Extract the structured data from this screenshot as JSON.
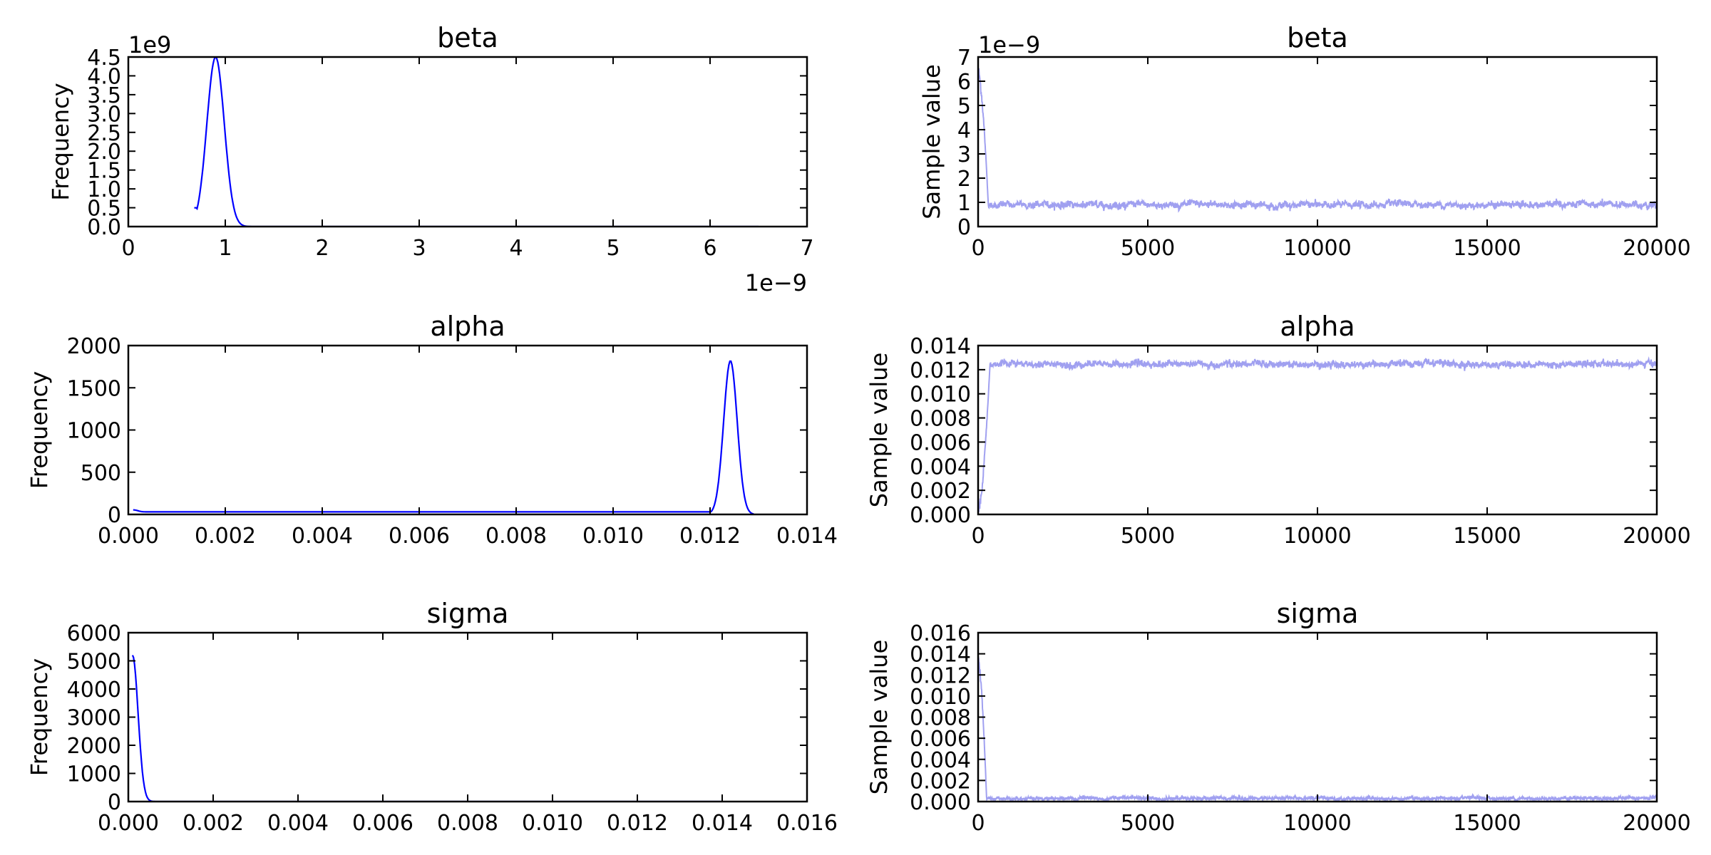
{
  "chart_data": [
    {
      "type": "line",
      "title": "beta",
      "ylabel": "Frequency",
      "xlim": [
        0,
        7
      ],
      "ylim": [
        0,
        4.5
      ],
      "x_offset": "1e−9",
      "y_offset": "1e9",
      "xticks": [
        0,
        1,
        2,
        3,
        4,
        5,
        6,
        7
      ],
      "xtick_labels": [
        "0",
        "1",
        "2",
        "3",
        "4",
        "5",
        "6",
        "7"
      ],
      "yticks": [
        0,
        0.5,
        1,
        1.5,
        2,
        2.5,
        3,
        3.5,
        4,
        4.5
      ],
      "ytick_labels": [
        "0.0",
        "0.5",
        "1.0",
        "1.5",
        "2.0",
        "2.5",
        "3.0",
        "3.5",
        "4.0",
        "4.5"
      ],
      "color": "#0000ff",
      "curve": {
        "kind": "peak",
        "mu": 0.9,
        "sd": 0.09,
        "amp": 4.5,
        "xstart": 0.68,
        "xend": 6.5,
        "start_y": 0.5
      }
    },
    {
      "type": "line",
      "title": "beta",
      "ylabel": "Sample value",
      "xlim": [
        0,
        20000
      ],
      "ylim": [
        0,
        7
      ],
      "y_offset": "1e−9",
      "xticks": [
        0,
        5000,
        10000,
        15000,
        20000
      ],
      "xtick_labels": [
        "0",
        "5000",
        "10000",
        "15000",
        "20000"
      ],
      "yticks": [
        0,
        1,
        2,
        3,
        4,
        5,
        6,
        7
      ],
      "ytick_labels": [
        "0",
        "1",
        "2",
        "3",
        "4",
        "5",
        "6",
        "7"
      ],
      "color": "#a0a0f0",
      "trace": {
        "start": 6.4,
        "burn_end": 300,
        "level": 0.9,
        "noise": 0.06,
        "n": 20000
      }
    },
    {
      "type": "line",
      "title": "alpha",
      "ylabel": "Frequency",
      "xlim": [
        0,
        0.014
      ],
      "ylim": [
        0,
        2000
      ],
      "xticks": [
        0,
        0.002,
        0.004,
        0.006,
        0.008,
        0.01,
        0.012,
        0.014
      ],
      "xtick_labels": [
        "0.000",
        "0.002",
        "0.004",
        "0.006",
        "0.008",
        "0.010",
        "0.012",
        "0.014"
      ],
      "yticks": [
        0,
        500,
        1000,
        1500,
        2000
      ],
      "ytick_labels": [
        "0",
        "500",
        "1000",
        "1500",
        "2000"
      ],
      "color": "#0000ff",
      "curve": {
        "kind": "peak",
        "mu": 0.01242,
        "sd": 0.00014,
        "amp": 1820,
        "xstart": 0.0001,
        "xend": 0.0129,
        "start_y": 30
      }
    },
    {
      "type": "line",
      "title": "alpha",
      "ylabel": "Sample value",
      "xlim": [
        0,
        20000
      ],
      "ylim": [
        0,
        0.014
      ],
      "xticks": [
        0,
        5000,
        10000,
        15000,
        20000
      ],
      "xtick_labels": [
        "0",
        "5000",
        "10000",
        "15000",
        "20000"
      ],
      "yticks": [
        0,
        0.002,
        0.004,
        0.006,
        0.008,
        0.01,
        0.012,
        0.014
      ],
      "ytick_labels": [
        "0.000",
        "0.002",
        "0.004",
        "0.006",
        "0.008",
        "0.010",
        "0.012",
        "0.014"
      ],
      "color": "#a0a0f0",
      "trace": {
        "start": 0.0003,
        "burn_end": 350,
        "level": 0.01245,
        "noise": 0.00012,
        "n": 20000
      }
    },
    {
      "type": "line",
      "title": "sigma",
      "ylabel": "Frequency",
      "xlim": [
        0,
        0.016
      ],
      "ylim": [
        0,
        6000
      ],
      "xticks": [
        0,
        0.002,
        0.004,
        0.006,
        0.008,
        0.01,
        0.012,
        0.014,
        0.016
      ],
      "xtick_labels": [
        "0.000",
        "0.002",
        "0.004",
        "0.006",
        "0.008",
        "0.010",
        "0.012",
        "0.014",
        "0.016"
      ],
      "yticks": [
        0,
        1000,
        2000,
        3000,
        4000,
        5000,
        6000
      ],
      "ytick_labels": [
        "0",
        "1000",
        "2000",
        "3000",
        "4000",
        "5000",
        "6000"
      ],
      "color": "#0000ff",
      "curve": {
        "kind": "decay",
        "mu": 0.0001,
        "sd": 0.00013,
        "amp": 5200,
        "xstart": 0.0001,
        "xend": 0.014,
        "start_y": 5200
      }
    },
    {
      "type": "line",
      "title": "sigma",
      "ylabel": "Sample value",
      "xlim": [
        0,
        20000
      ],
      "ylim": [
        0,
        0.016
      ],
      "xticks": [
        0,
        5000,
        10000,
        15000,
        20000
      ],
      "xtick_labels": [
        "0",
        "5000",
        "10000",
        "15000",
        "20000"
      ],
      "yticks": [
        0,
        0.002,
        0.004,
        0.006,
        0.008,
        0.01,
        0.012,
        0.014,
        0.016
      ],
      "ytick_labels": [
        "0.000",
        "0.002",
        "0.004",
        "0.006",
        "0.008",
        "0.010",
        "0.012",
        "0.014",
        "0.016"
      ],
      "color": "#a0a0f0",
      "trace": {
        "start": 0.0135,
        "burn_end": 250,
        "level": 0.0003,
        "noise": 7e-05,
        "n": 20000
      }
    }
  ]
}
